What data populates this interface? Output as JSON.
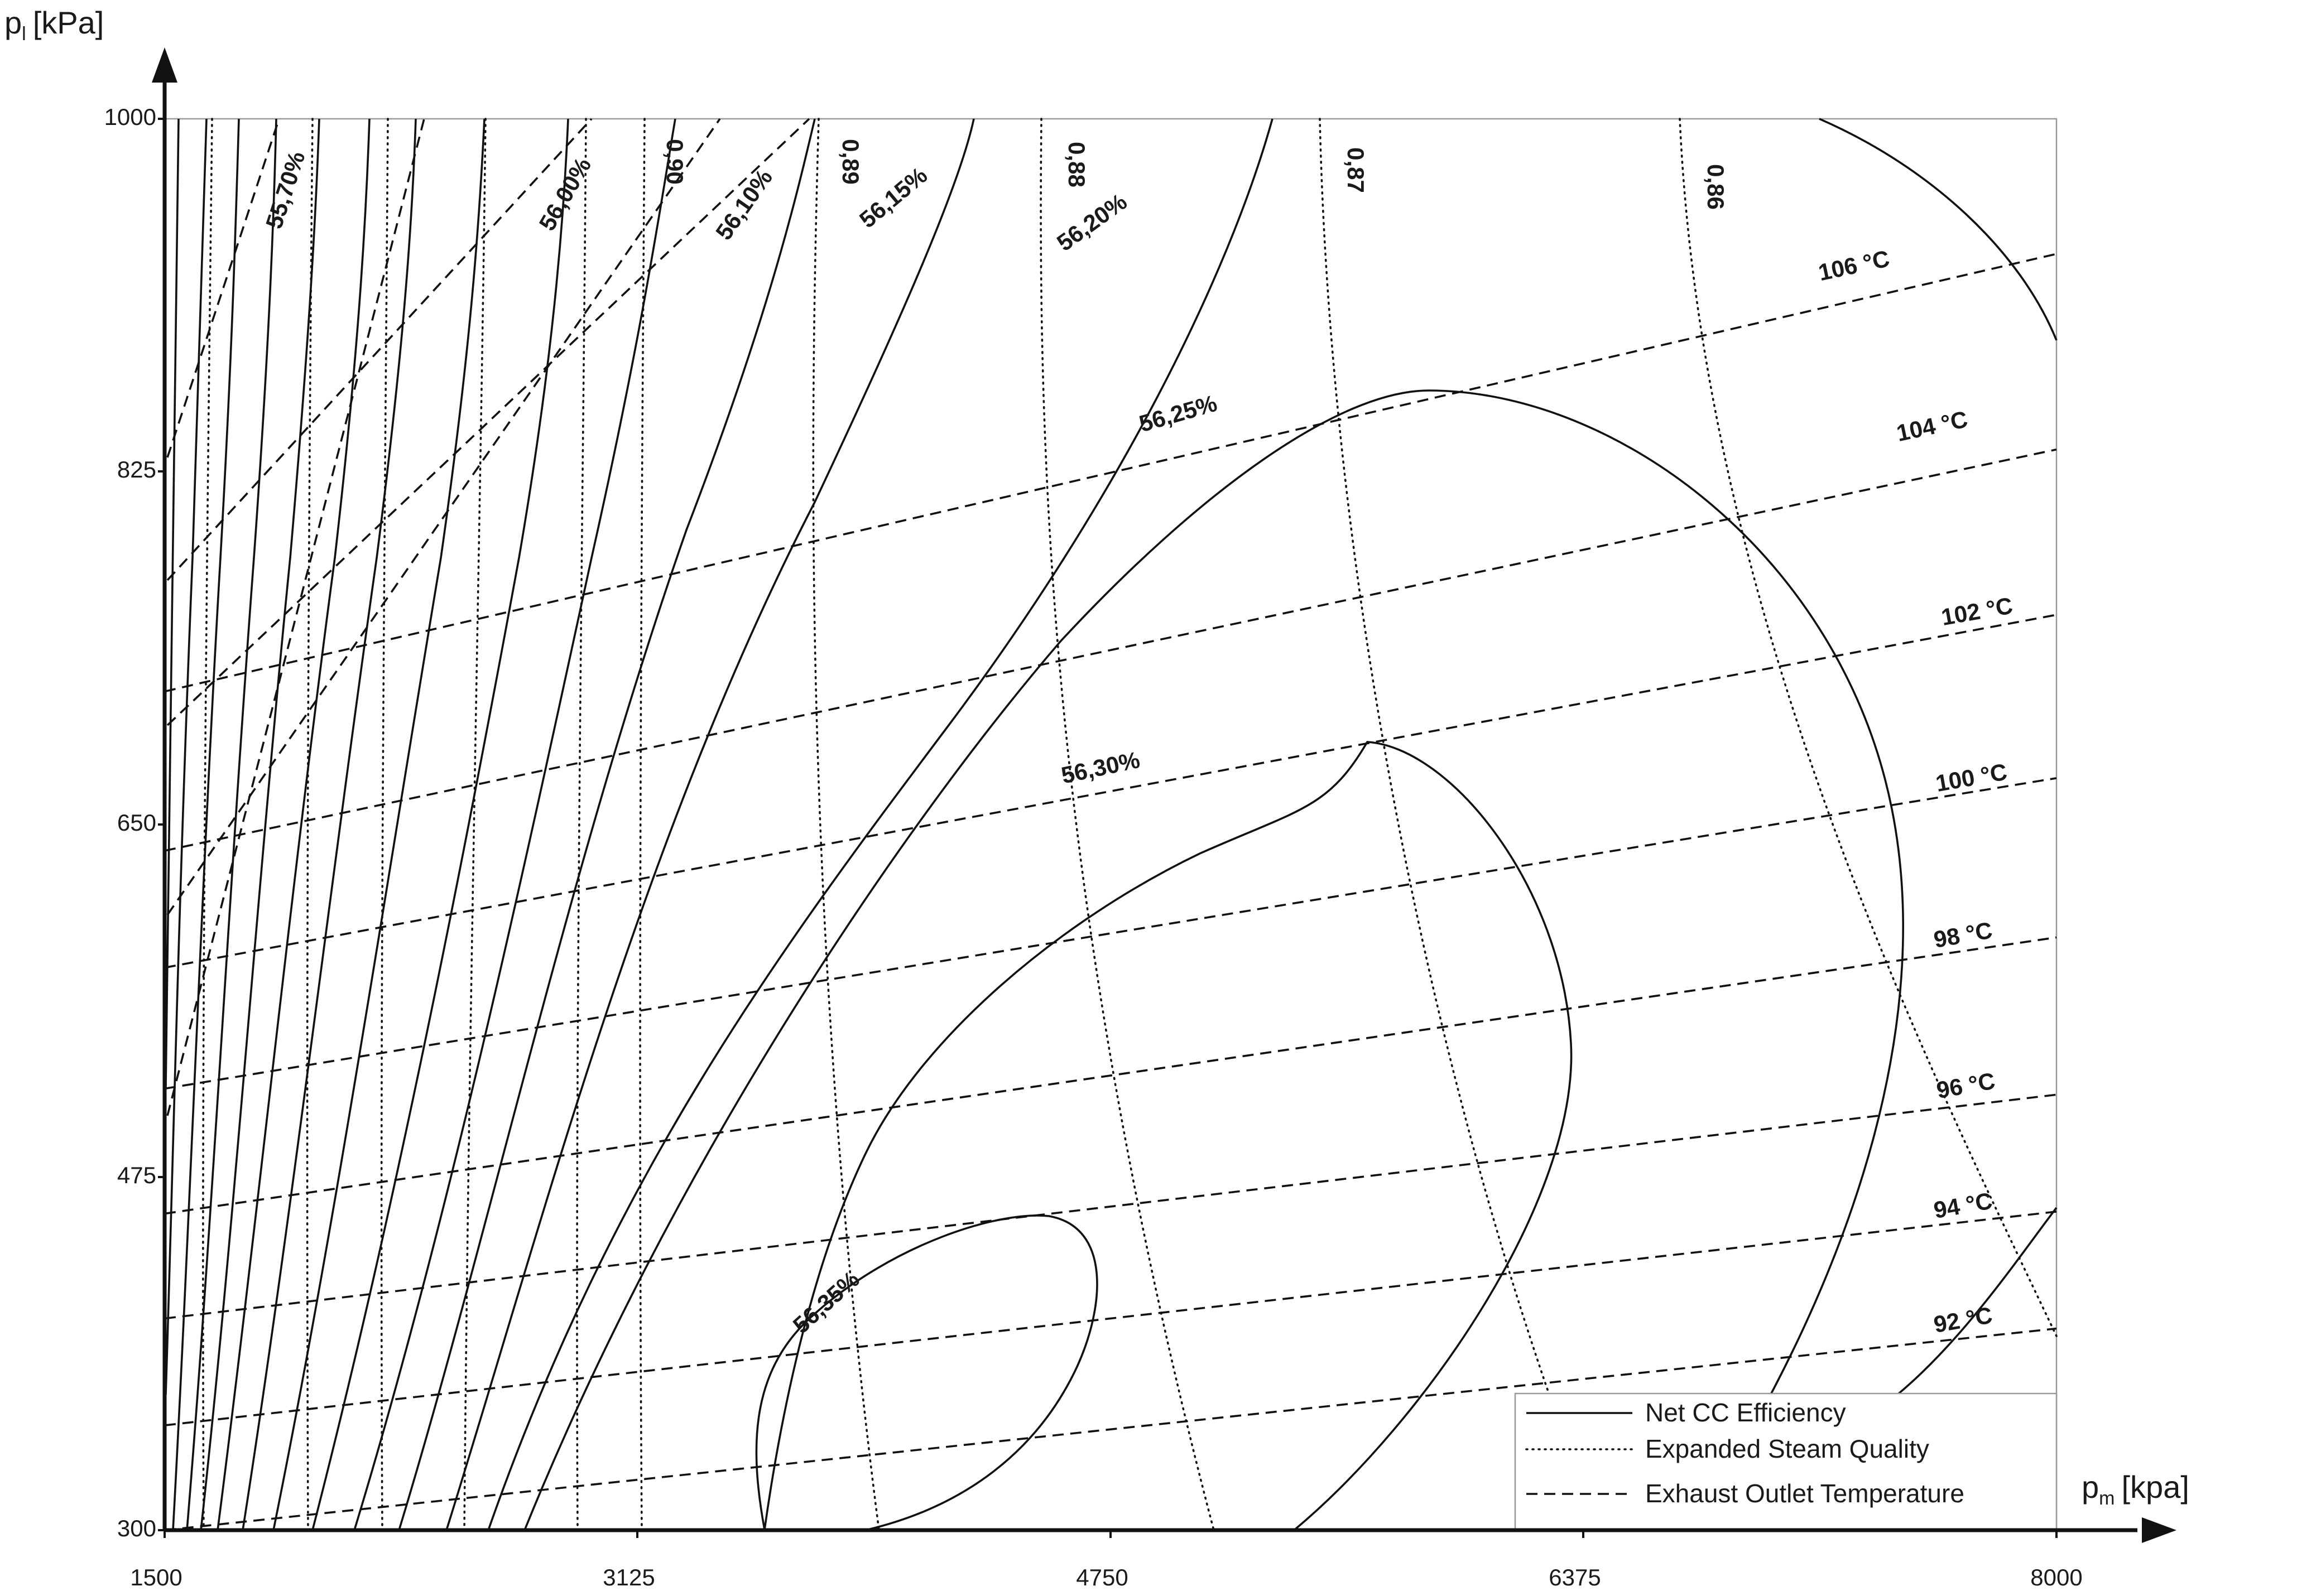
{
  "chart_data": {
    "type": "contour",
    "xlabel": "p",
    "xlabel_sub": "m",
    "xlabel_unit": "[kpa]",
    "ylabel": "p",
    "ylabel_sub": "l",
    "ylabel_unit": "[kPa]",
    "xlim": [
      1500,
      8000
    ],
    "ylim": [
      300,
      1000
    ],
    "x_ticks": [
      "1500",
      "3125",
      "4750",
      "6375",
      "8000"
    ],
    "y_ticks": [
      "300",
      "475",
      "650",
      "825",
      "1000"
    ],
    "grid": false,
    "legend_position": "bottom-right",
    "legend": [
      {
        "label": "Net CC Efficiency",
        "style": "solid"
      },
      {
        "label": "Expanded Steam Quality",
        "style": "dotted"
      },
      {
        "label": "Exhaust Outlet Temperature",
        "style": "dashed"
      }
    ],
    "efficiency_contours": [
      {
        "label": "55,70%"
      },
      {
        "label": "56,00%"
      },
      {
        "label": "56,10%"
      },
      {
        "label": "56,15%"
      },
      {
        "label": "56,20%"
      },
      {
        "label": "56,25%"
      },
      {
        "label": "56,30%"
      },
      {
        "label": "56,35%"
      }
    ],
    "quality_contours": [
      {
        "label": "0,90"
      },
      {
        "label": "0,89"
      },
      {
        "label": "0,88"
      },
      {
        "label": "0,87"
      },
      {
        "label": "0,86"
      }
    ],
    "temperature_contours": [
      {
        "label": "92 °C",
        "points": [
          [
            1500,
            300
          ],
          [
            8000,
            400
          ]
        ]
      },
      {
        "label": "94 °C",
        "points": [
          [
            1500,
            352
          ],
          [
            8000,
            458
          ]
        ]
      },
      {
        "label": "96 °C",
        "points": [
          [
            1500,
            405
          ],
          [
            8000,
            516
          ]
        ]
      },
      {
        "label": "98 °C",
        "points": [
          [
            1500,
            457
          ],
          [
            8000,
            594
          ]
        ]
      },
      {
        "label": "100 °C",
        "points": [
          [
            1500,
            519
          ],
          [
            8000,
            673
          ]
        ]
      },
      {
        "label": "102 °C",
        "points": [
          [
            1500,
            579
          ],
          [
            8000,
            754
          ]
        ]
      },
      {
        "label": "104 °C",
        "points": [
          [
            1500,
            637
          ],
          [
            8000,
            836
          ]
        ]
      },
      {
        "label": "106 °C",
        "points": [
          [
            1500,
            716
          ],
          [
            8000,
            933
          ]
        ]
      }
    ]
  }
}
